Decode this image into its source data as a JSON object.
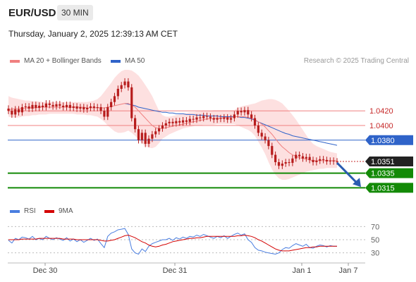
{
  "header": {
    "symbol": "EUR/USD",
    "timeframe": "30 MIN",
    "datetime": "Thursday, January 2, 2025 12:39:13 AM CET"
  },
  "legend": {
    "ma20": "MA 20 + Bollinger Bands",
    "ma50": "MA 50",
    "credit": "Research © 2025 Trading Central",
    "rsi": "RSI",
    "ma9": "9MA"
  },
  "colors": {
    "ma20": "#f08080",
    "ma50": "#2f63c9",
    "bb": "#fde0e0",
    "candle": "#b71c1c",
    "support": "#138a07",
    "resistance": "#f08080",
    "pivot": "#2f63c9",
    "rsi": "#4a7ee0",
    "rsi_ma": "#d40000"
  },
  "chart_data": [
    {
      "type": "line",
      "title": "",
      "x_ticks": [
        "Dec 30",
        "Dec 31",
        "Jan 1",
        "Jan 7"
      ],
      "ylim": [
        1.03,
        1.0475
      ],
      "last_price": "1.0351",
      "levels": [
        {
          "value": 1.042,
          "label": "1.0420",
          "kind": "resistance"
        },
        {
          "value": 1.04,
          "label": "1.0400",
          "kind": "resistance"
        },
        {
          "value": 1.038,
          "label": "1.0380",
          "kind": "pivot"
        },
        {
          "value": 1.0335,
          "label": "1.0335",
          "kind": "support"
        },
        {
          "value": 1.0315,
          "label": "1.0315",
          "kind": "support"
        }
      ],
      "close": [
        1.042,
        1.0415,
        1.0422,
        1.0418,
        1.0425,
        1.0426,
        1.0423,
        1.0428,
        1.0424,
        1.0427,
        1.0425,
        1.043,
        1.0428,
        1.0426,
        1.0429,
        1.0427,
        1.0425,
        1.0428,
        1.0424,
        1.0426,
        1.0423,
        1.0425,
        1.0422,
        1.0424,
        1.0426,
        1.0424,
        1.0425,
        1.042,
        1.0412,
        1.0425,
        1.0432,
        1.044,
        1.045,
        1.0455,
        1.046,
        1.0452,
        1.041,
        1.0395,
        1.038,
        1.039,
        1.0375,
        1.0382,
        1.0388,
        1.0392,
        1.0396,
        1.04,
        1.0403,
        1.0405,
        1.0403,
        1.0406,
        1.0404,
        1.0407,
        1.0405,
        1.0409,
        1.0408,
        1.0411,
        1.041,
        1.0413,
        1.0412,
        1.041,
        1.0408,
        1.041,
        1.0409,
        1.0411,
        1.0408,
        1.041,
        1.0415,
        1.042,
        1.0418,
        1.0421,
        1.0415,
        1.041,
        1.04,
        1.039,
        1.0385,
        1.038,
        1.0372,
        1.036,
        1.035,
        1.0345,
        1.0348,
        1.035,
        1.0349,
        1.0355,
        1.036,
        1.0358,
        1.0355,
        1.0357,
        1.0353,
        1.035,
        1.0352,
        1.0354,
        1.0353,
        1.0351,
        1.0352,
        1.0351,
        1.0351
      ],
      "ma20": [
        1.0422,
        1.0422,
        1.0423,
        1.0423,
        1.0423,
        1.0424,
        1.0424,
        1.0424,
        1.0424,
        1.0425,
        1.0425,
        1.0425,
        1.0425,
        1.0425,
        1.0425,
        1.0425,
        1.0425,
        1.0425,
        1.0425,
        1.0425,
        1.0425,
        1.0425,
        1.0425,
        1.0424,
        1.0424,
        1.0424,
        1.0424,
        1.0424,
        1.0424,
        1.0425,
        1.0426,
        1.0427,
        1.0428,
        1.0429,
        1.043,
        1.043,
        1.0428,
        1.0425,
        1.042,
        1.0415,
        1.041,
        1.0405,
        1.04,
        1.0397,
        1.0396,
        1.0396,
        1.0397,
        1.0398,
        1.0399,
        1.04,
        1.0401,
        1.0402,
        1.0403,
        1.0404,
        1.0405,
        1.0406,
        1.0407,
        1.0408,
        1.0409,
        1.0409,
        1.041,
        1.041,
        1.041,
        1.0411,
        1.0411,
        1.0411,
        1.0412,
        1.0412,
        1.0412,
        1.0412,
        1.0411,
        1.041,
        1.0408,
        1.0405,
        1.0402,
        1.0398,
        1.0393,
        1.0388,
        1.0382,
        1.0376,
        1.0371,
        1.0367,
        1.0363,
        1.036,
        1.0358,
        1.0356,
        1.0355,
        1.0354,
        1.0353,
        1.0352,
        1.0352,
        1.0352,
        1.0352,
        1.0352,
        1.0352,
        1.0352,
        1.0352
      ],
      "ma50": [
        null,
        null,
        null,
        null,
        null,
        null,
        null,
        null,
        null,
        null,
        null,
        null,
        null,
        null,
        null,
        null,
        null,
        null,
        null,
        null,
        null,
        null,
        null,
        null,
        null,
        null,
        null,
        null,
        null,
        null,
        null,
        null,
        null,
        null,
        1.043,
        1.0429,
        1.0428,
        1.0427,
        1.0425,
        1.0424,
        1.0423,
        1.0422,
        1.0421,
        1.042,
        1.0419,
        1.0418,
        1.0418,
        1.0417,
        1.0417,
        1.0416,
        1.0416,
        1.0416,
        1.0415,
        1.0415,
        1.0415,
        1.0414,
        1.0414,
        1.0414,
        1.0413,
        1.0413,
        1.0413,
        1.0413,
        1.0412,
        1.0412,
        1.0412,
        1.0412,
        1.0412,
        1.0412,
        1.0411,
        1.0411,
        1.041,
        1.0409,
        1.0407,
        1.0405,
        1.0403,
        1.0401,
        1.0399,
        1.0397,
        1.0395,
        1.0393,
        1.0391,
        1.0389,
        1.0388,
        1.0386,
        1.0385,
        1.0384,
        1.0383,
        1.0382,
        1.0381,
        1.038,
        1.0379,
        1.0378,
        1.0377,
        1.0376,
        1.0375,
        1.0374,
        1.0373
      ],
      "bb_upper": [
        1.044,
        1.0438,
        1.0437,
        1.0436,
        1.0435,
        1.0434,
        1.0434,
        1.0433,
        1.0433,
        1.0433,
        1.0432,
        1.0432,
        1.0432,
        1.0432,
        1.0432,
        1.0432,
        1.0432,
        1.0432,
        1.0432,
        1.0432,
        1.0432,
        1.0432,
        1.0432,
        1.0432,
        1.0433,
        1.0434,
        1.0436,
        1.044,
        1.0446,
        1.0452,
        1.0458,
        1.0465,
        1.047,
        1.0474,
        1.0476,
        1.0476,
        1.0475,
        1.0472,
        1.0468,
        1.0462,
        1.0455,
        1.0448,
        1.044,
        1.043,
        1.042,
        1.0414,
        1.0412,
        1.0412,
        1.0413,
        1.0414,
        1.0415,
        1.0416,
        1.0417,
        1.0418,
        1.0418,
        1.0419,
        1.0419,
        1.042,
        1.042,
        1.042,
        1.0421,
        1.0421,
        1.0421,
        1.0421,
        1.0421,
        1.0421,
        1.0421,
        1.0424,
        1.0426,
        1.0427,
        1.0428,
        1.0429,
        1.043,
        1.0432,
        1.0434,
        1.0435,
        1.0436,
        1.0436,
        1.0435,
        1.0433,
        1.043,
        1.0425,
        1.042,
        1.0414,
        1.0408,
        1.0401,
        1.0394,
        1.0387,
        1.038,
        1.0375,
        1.0372,
        1.037,
        1.0368,
        1.0366,
        1.0364,
        1.0363,
        1.0362
      ],
      "bb_lower": [
        1.0412,
        1.0411,
        1.0411,
        1.0411,
        1.0412,
        1.0413,
        1.0413,
        1.0414,
        1.0414,
        1.0415,
        1.0415,
        1.0415,
        1.0416,
        1.0416,
        1.0416,
        1.0416,
        1.0416,
        1.0416,
        1.0416,
        1.0416,
        1.0415,
        1.0415,
        1.0415,
        1.0414,
        1.0414,
        1.0413,
        1.0412,
        1.0409,
        1.0405,
        1.04,
        1.0396,
        1.0392,
        1.039,
        1.039,
        1.0391,
        1.0393,
        1.039,
        1.0386,
        1.0381,
        1.0376,
        1.0372,
        1.037,
        1.0369,
        1.0371,
        1.0376,
        1.0382,
        1.0385,
        1.0388,
        1.039,
        1.0392,
        1.0394,
        1.0396,
        1.0397,
        1.0398,
        1.0399,
        1.04,
        1.04,
        1.0401,
        1.0401,
        1.0401,
        1.0401,
        1.0402,
        1.0402,
        1.0402,
        1.0402,
        1.0402,
        1.0402,
        1.04,
        1.0398,
        1.0396,
        1.0394,
        1.0391,
        1.0386,
        1.0378,
        1.037,
        1.0361,
        1.035,
        1.034,
        1.0333,
        1.0328,
        1.0326,
        1.0326,
        1.0327,
        1.0329,
        1.0331,
        1.0333,
        1.0335,
        1.0337,
        1.0338,
        1.0339,
        1.034,
        1.0341,
        1.0341,
        1.0342,
        1.0342,
        1.0342,
        1.0342
      ]
    },
    {
      "type": "line",
      "title": "",
      "y_ticks": [
        30,
        50,
        70
      ],
      "ylim": [
        20,
        80
      ],
      "series": [
        {
          "name": "RSI",
          "values": [
            49,
            45,
            52,
            50,
            54,
            53,
            51,
            55,
            50,
            52,
            50,
            55,
            52,
            50,
            53,
            51,
            49,
            53,
            48,
            51,
            47,
            50,
            46,
            49,
            52,
            49,
            51,
            44,
            38,
            55,
            60,
            62,
            65,
            66,
            67,
            58,
            36,
            30,
            28,
            36,
            32,
            40,
            44,
            46,
            48,
            50,
            50,
            52,
            49,
            53,
            51,
            54,
            52,
            55,
            54,
            57,
            55,
            58,
            56,
            54,
            52,
            55,
            53,
            56,
            52,
            55,
            58,
            60,
            57,
            59,
            50,
            46,
            38,
            34,
            33,
            31,
            30,
            29,
            28,
            30,
            35,
            38,
            37,
            41,
            44,
            42,
            40,
            43,
            38,
            37,
            40,
            42,
            41,
            39,
            41,
            40,
            40
          ]
        },
        {
          "name": "9MA",
          "values": [
            50,
            50,
            50,
            50,
            51,
            51,
            51,
            51,
            51,
            52,
            52,
            52,
            52,
            52,
            52,
            52,
            51,
            51,
            51,
            51,
            50,
            50,
            50,
            50,
            50,
            50,
            50,
            49,
            48,
            48,
            49,
            50,
            52,
            54,
            56,
            57,
            55,
            53,
            50,
            47,
            45,
            42,
            40,
            39,
            40,
            42,
            43,
            45,
            47,
            48,
            49,
            50,
            51,
            52,
            52,
            53,
            53,
            54,
            55,
            55,
            55,
            55,
            55,
            55,
            55,
            55,
            55,
            56,
            56,
            57,
            56,
            55,
            53,
            50,
            48,
            45,
            42,
            39,
            36,
            34,
            33,
            33,
            33,
            34,
            35,
            36,
            37,
            38,
            38,
            39,
            39,
            40,
            40,
            40,
            40,
            40,
            40
          ]
        }
      ]
    }
  ]
}
